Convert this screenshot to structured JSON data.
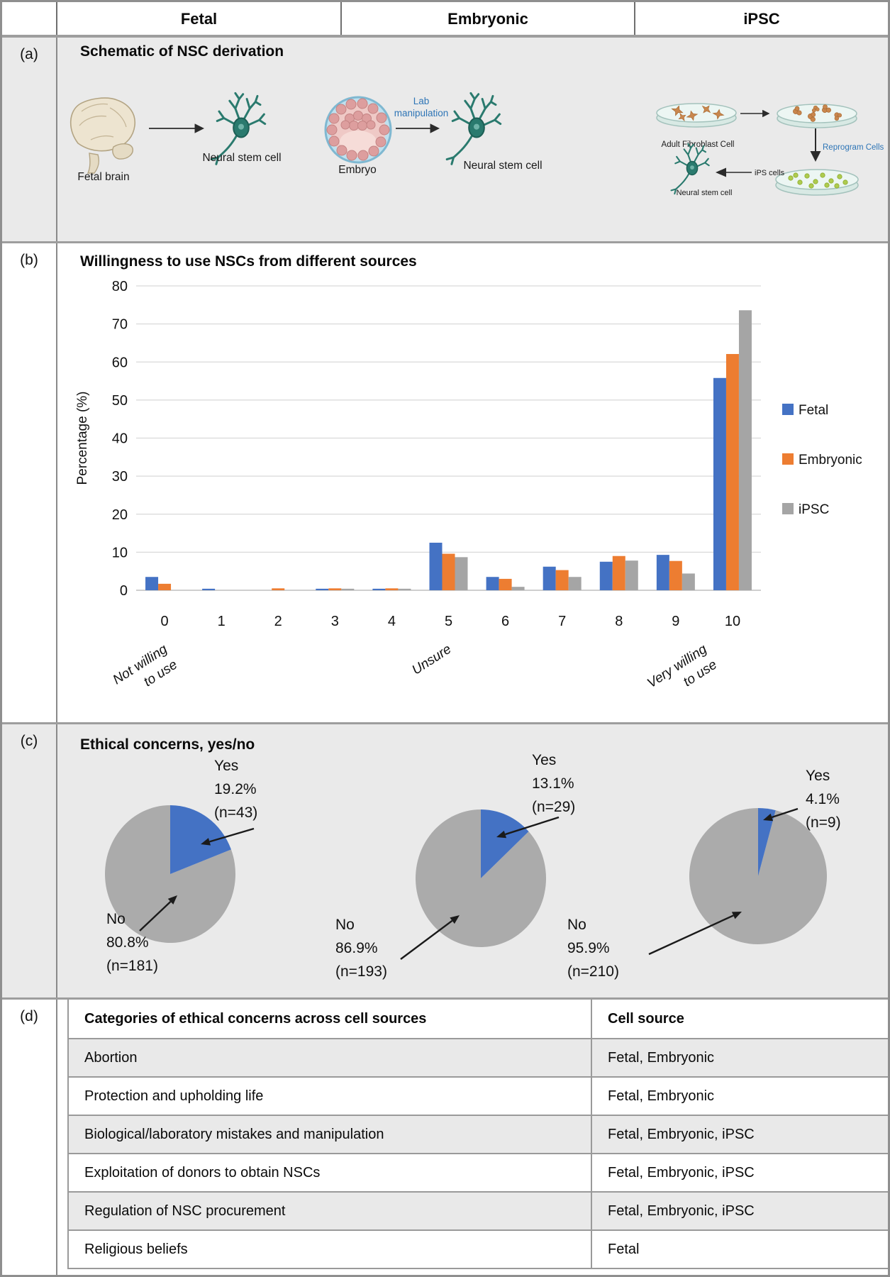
{
  "header": {
    "columns": [
      "Fetal",
      "Embryonic",
      "iPSC"
    ]
  },
  "colors": {
    "fetal_blue": "#4472C4",
    "embryonic_orange": "#ED7D31",
    "ipsc_gray": "#A5A5A5",
    "pie_gray": "#ABABAB",
    "accent_blue": "#2E75B6",
    "panel_bg": "#EAEAEA",
    "border_gray": "#9E9E9E"
  },
  "panel_a": {
    "label": "(a)",
    "title": "Schematic of NSC derivation",
    "fetal": {
      "source_label": "Fetal brain",
      "result_label": "Neural stem cell"
    },
    "embryonic": {
      "source_label": "Embryo",
      "arrow_label_line1": "Lab",
      "arrow_label_line2": "manipulation",
      "result_label": "Neural stem cell"
    },
    "ipsc": {
      "dish1_label": "Adult Fibroblast Cell",
      "reprogram_label": "Reprogram Cells",
      "ips_label": "iPS cells",
      "result_label": "Neural stem cell"
    }
  },
  "panel_b": {
    "label": "(b)",
    "title": "Willingness to use NSCs from different sources"
  },
  "panel_c": {
    "label": "(c)",
    "title": "Ethical concerns, yes/no"
  },
  "panel_d": {
    "label": "(d)",
    "table": {
      "headers": [
        "Categories of ethical concerns across cell sources",
        "Cell source"
      ],
      "rows": [
        {
          "category": "Abortion",
          "sources": "Fetal, Embryonic"
        },
        {
          "category": "Protection and upholding life",
          "sources": "Fetal, Embryonic"
        },
        {
          "category": "Biological/laboratory mistakes and manipulation",
          "sources": "Fetal, Embryonic, iPSC"
        },
        {
          "category": "Exploitation of donors to obtain NSCs",
          "sources": "Fetal, Embryonic, iPSC"
        },
        {
          "category": "Regulation of NSC procurement",
          "sources": "Fetal, Embryonic, iPSC"
        },
        {
          "category": "Religious beliefs",
          "sources": "Fetal"
        }
      ]
    }
  },
  "chart_data": [
    {
      "id": "willingness-bar",
      "type": "bar",
      "title": "Willingness to use NSCs from different sources",
      "xlabel": "",
      "ylabel": "Percentage (%)",
      "ylim": [
        0,
        80
      ],
      "ytick_step": 10,
      "grid": true,
      "legend_position": "right",
      "categories": [
        "0",
        "1",
        "2",
        "3",
        "4",
        "5",
        "6",
        "7",
        "8",
        "9",
        "10"
      ],
      "series": [
        {
          "name": "Fetal",
          "color": "#4472C4",
          "values": [
            3.5,
            0.4,
            0,
            0.4,
            0.4,
            12.5,
            3.5,
            6.2,
            7.5,
            9.3,
            55.8
          ]
        },
        {
          "name": "Embryonic",
          "color": "#ED7D31",
          "values": [
            1.7,
            0,
            0.5,
            0.5,
            0.5,
            9.6,
            3.0,
            5.3,
            9.0,
            7.7,
            62.1
          ]
        },
        {
          "name": "iPSC",
          "color": "#A5A5A5",
          "values": [
            0,
            0,
            0,
            0.4,
            0.4,
            8.7,
            0.9,
            3.5,
            7.8,
            4.4,
            73.6
          ]
        }
      ],
      "axis_annotations": [
        {
          "x": 0,
          "lines": [
            "Not willing",
            "to use"
          ]
        },
        {
          "x": 5,
          "lines": [
            "Unsure"
          ]
        },
        {
          "x": 9.5,
          "lines": [
            "Very willing",
            "to use"
          ]
        }
      ]
    },
    {
      "id": "ethics-pie-fetal",
      "type": "pie",
      "group": "Fetal",
      "slices": [
        {
          "label": "Yes",
          "pct": 19.2,
          "n": 43,
          "color": "#4472C4"
        },
        {
          "label": "No",
          "pct": 80.8,
          "n": 181,
          "color": "#ABABAB"
        }
      ]
    },
    {
      "id": "ethics-pie-embryonic",
      "type": "pie",
      "group": "Embryonic",
      "slices": [
        {
          "label": "Yes",
          "pct": 13.1,
          "n": 29,
          "color": "#4472C4"
        },
        {
          "label": "No",
          "pct": 86.9,
          "n": 193,
          "color": "#ABABAB"
        }
      ]
    },
    {
      "id": "ethics-pie-ipsc",
      "type": "pie",
      "group": "iPSC",
      "slices": [
        {
          "label": "Yes",
          "pct": 4.1,
          "n": 9,
          "color": "#4472C4"
        },
        {
          "label": "No",
          "pct": 95.9,
          "n": 210,
          "color": "#ABABAB"
        }
      ]
    }
  ]
}
